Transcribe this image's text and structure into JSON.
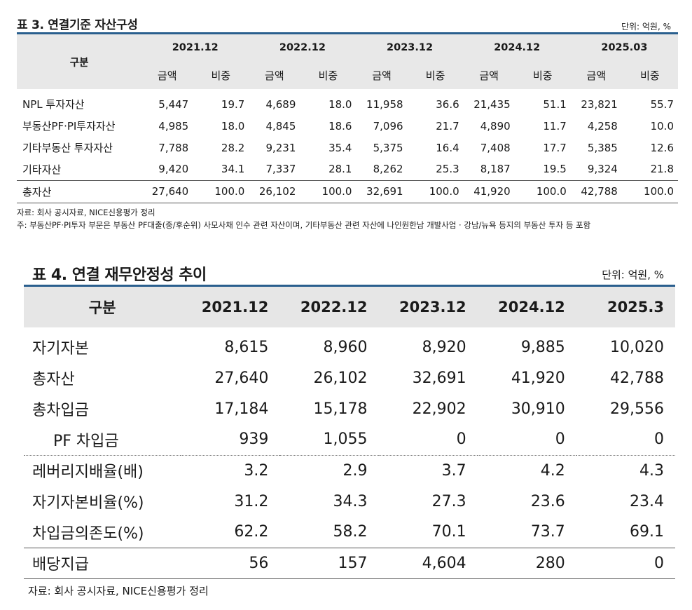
{
  "table3": {
    "title": "표 3. 연결기준 자산구성",
    "unit": "단위: 억원, %",
    "header_label": "구분",
    "periods": [
      "2021.12",
      "2022.12",
      "2023.12",
      "2024.12",
      "2025.03"
    ],
    "sub_headers": {
      "amount": "금액",
      "ratio": "비중"
    },
    "rows": [
      {
        "label": "NPL 투자자산",
        "cells": [
          "5,447",
          "19.7",
          "4,689",
          "18.0",
          "11,958",
          "36.6",
          "21,435",
          "51.1",
          "23,821",
          "55.7"
        ]
      },
      {
        "label": "부동산PF·PI투자자산",
        "cells": [
          "4,985",
          "18.0",
          "4,845",
          "18.6",
          "7,096",
          "21.7",
          "4,890",
          "11.7",
          "4,258",
          "10.0"
        ]
      },
      {
        "label": "기타부동산 투자자산",
        "cells": [
          "7,788",
          "28.2",
          "9,231",
          "35.4",
          "5,375",
          "16.4",
          "7,408",
          "17.7",
          "5,385",
          "12.6"
        ]
      },
      {
        "label": "기타자산",
        "cells": [
          "9,420",
          "34.1",
          "7,337",
          "28.1",
          "8,262",
          "25.3",
          "8,187",
          "19.5",
          "9,324",
          "21.8"
        ]
      }
    ],
    "total": {
      "label": "총자산",
      "cells": [
        "27,640",
        "100.0",
        "26,102",
        "100.0",
        "32,691",
        "100.0",
        "41,920",
        "100.0",
        "42,788",
        "100.0"
      ]
    },
    "source": "자료: 회사 공시자료, NICE신용평가 정리",
    "note": "주: 부동산PF·PI투자 부문은 부동산 PF대출(중/후순위) 사모사채 인수 관련 자산이며, 기타부동산 관련 자산에 나인원한남 개발사업 · 강남/뉴욕 등지의 부동산 투자 등 포함"
  },
  "table4": {
    "title": "표 4. 연결 재무안정성 추이",
    "unit": "단위: 억원, %",
    "header_label": "구분",
    "periods": [
      "2021.12",
      "2022.12",
      "2023.12",
      "2024.12",
      "2025.3"
    ],
    "rows": [
      {
        "label": "자기자본",
        "values": [
          "8,615",
          "8,960",
          "8,920",
          "9,885",
          "10,020"
        ]
      },
      {
        "label": "총자산",
        "values": [
          "27,640",
          "26,102",
          "32,691",
          "41,920",
          "42,788"
        ]
      },
      {
        "label": "총차입금",
        "values": [
          "17,184",
          "15,178",
          "22,902",
          "30,910",
          "29,556"
        ]
      },
      {
        "label": "PF 차입금",
        "values": [
          "939",
          "1,055",
          "0",
          "0",
          "0"
        ]
      },
      {
        "label": "레버리지배율(배)",
        "values": [
          "3.2",
          "2.9",
          "3.7",
          "4.2",
          "4.3"
        ]
      },
      {
        "label": "자기자본비율(%)",
        "values": [
          "31.2",
          "34.3",
          "27.3",
          "23.6",
          "23.4"
        ]
      },
      {
        "label": "차입금의존도(%)",
        "values": [
          "62.2",
          "58.2",
          "70.1",
          "73.7",
          "69.1"
        ]
      },
      {
        "label": "배당지급",
        "values": [
          "56",
          "157",
          "4,604",
          "280",
          "0"
        ]
      }
    ],
    "source": "자료: 회사 공시자료, NICE신용평가 정리"
  }
}
